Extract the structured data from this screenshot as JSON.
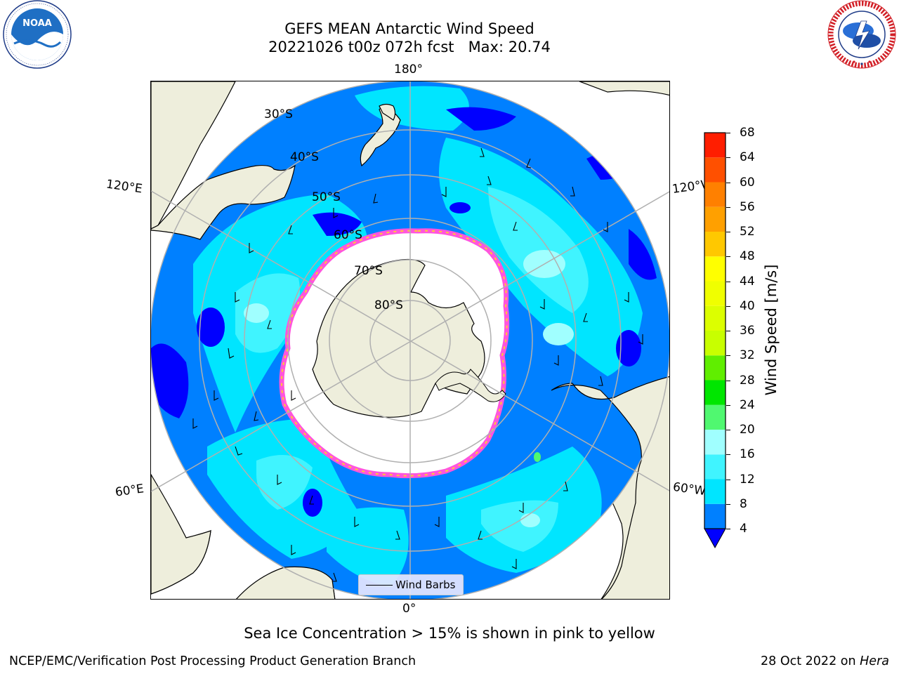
{
  "header": {
    "title_line1": "GEFS MEAN Antarctic Wind Speed",
    "title_line2": "20221026 t00z 072h fcst   Max: 20.74"
  },
  "logos": {
    "left_name": "NOAA",
    "left_ring_text": "NATIONAL OCEANIC AND ATMOSPHERIC ADMINISTRATION · U.S. DEPARTMENT OF COMMERCE",
    "right_ring_text": "NATIONAL WEATHER SERVICE"
  },
  "map": {
    "projection": "south-polar-stereographic",
    "meridian_labels": {
      "top": "180°",
      "bottom": "0°",
      "upper_left": "120°E",
      "upper_right": "120°W",
      "lower_left": "60°E",
      "lower_right": "60°W"
    },
    "latitude_labels": [
      "30°S",
      "40°S",
      "50°S",
      "60°S",
      "70°S",
      "80°S"
    ],
    "colors": {
      "land": "#eeeedc",
      "ice": "#ffffff",
      "ice_edge_pink": "#ff55dd",
      "ice_edge_yellow": "#ffcc33",
      "grid": "#b0b0b0"
    }
  },
  "colorbar": {
    "label": "Wind Speed [m/s]",
    "ticks": [
      "4",
      "8",
      "12",
      "16",
      "20",
      "24",
      "28",
      "32",
      "36",
      "40",
      "44",
      "48",
      "52",
      "56",
      "60",
      "64",
      "68"
    ],
    "bins": [
      {
        "from": 4,
        "to": 8,
        "color": "#0080ff"
      },
      {
        "from": 8,
        "to": 12,
        "color": "#00e5ff"
      },
      {
        "from": 12,
        "to": 16,
        "color": "#40f4ff"
      },
      {
        "from": 16,
        "to": 20,
        "color": "#a0ffff"
      },
      {
        "from": 20,
        "to": 24,
        "color": "#50f870"
      },
      {
        "from": 24,
        "to": 28,
        "color": "#00e600"
      },
      {
        "from": 28,
        "to": 32,
        "color": "#60ee00"
      },
      {
        "from": 32,
        "to": 36,
        "color": "#c8ff00"
      },
      {
        "from": 36,
        "to": 40,
        "color": "#dcff00"
      },
      {
        "from": 40,
        "to": 44,
        "color": "#f0ff00"
      },
      {
        "from": 44,
        "to": 48,
        "color": "#ffff00"
      },
      {
        "from": 48,
        "to": 52,
        "color": "#ffc800"
      },
      {
        "from": 52,
        "to": 56,
        "color": "#ffa000"
      },
      {
        "from": 56,
        "to": 60,
        "color": "#ff8000"
      },
      {
        "from": 60,
        "to": 64,
        "color": "#ff5000"
      },
      {
        "from": 64,
        "to": 68,
        "color": "#ff1e00"
      }
    ],
    "under_color": "#0000ff"
  },
  "legend": {
    "entry": "Wind Barbs"
  },
  "caption": "Sea Ice Concentration > 15% is shown in pink to yellow",
  "footer": {
    "left": "NCEP/EMC/Verification Post Processing Product Generation Branch",
    "date": "28 Oct 2022 on ",
    "system": "Hera"
  }
}
